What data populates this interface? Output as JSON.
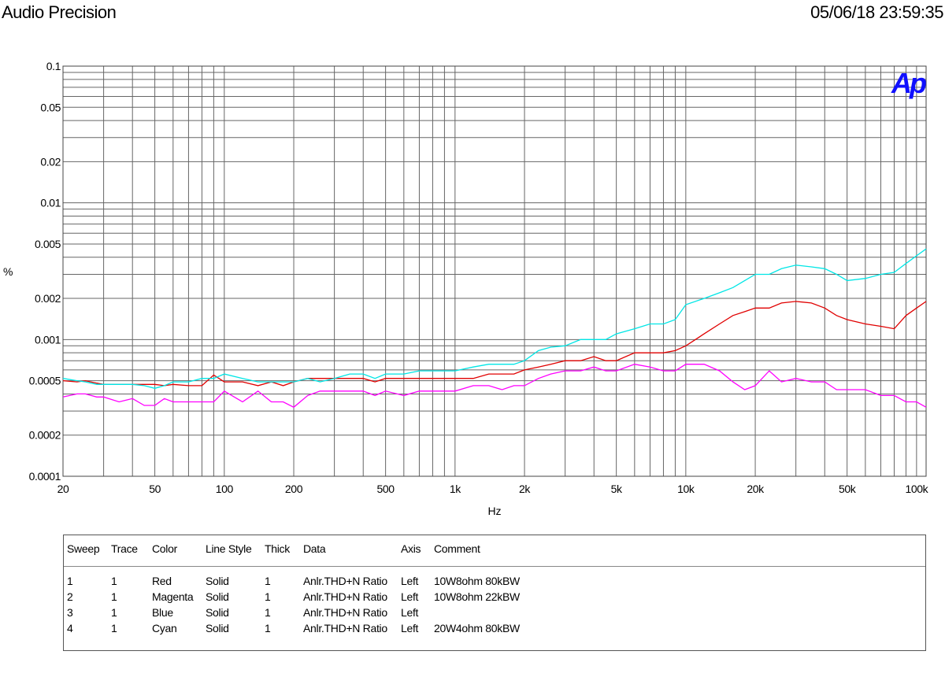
{
  "header": {
    "brand": "Audio Precision",
    "timestamp": "05/06/18 23:59:35"
  },
  "logo_text": "Ap",
  "colors": {
    "red": "#e00000",
    "magenta": "#ff00ff",
    "blue": "#0000ff",
    "cyan": "#00e6e6",
    "grid": "#666666",
    "logo": "#1010ff"
  },
  "chart_data": {
    "type": "line",
    "xlabel": "Hz",
    "ylabel": "%",
    "xscale": "log",
    "yscale": "log",
    "xlim": [
      20,
      110000
    ],
    "ylim": [
      0.0001,
      0.1
    ],
    "grid": true,
    "x_tick_labels": [
      {
        "value": 20,
        "label": "20"
      },
      {
        "value": 50,
        "label": "50"
      },
      {
        "value": 100,
        "label": "100"
      },
      {
        "value": 200,
        "label": "200"
      },
      {
        "value": 500,
        "label": "500"
      },
      {
        "value": 1000,
        "label": "1k"
      },
      {
        "value": 2000,
        "label": "2k"
      },
      {
        "value": 5000,
        "label": "5k"
      },
      {
        "value": 10000,
        "label": "10k"
      },
      {
        "value": 20000,
        "label": "20k"
      },
      {
        "value": 50000,
        "label": "50k"
      },
      {
        "value": 100000,
        "label": "100k"
      }
    ],
    "y_tick_labels": [
      {
        "value": 0.1,
        "label": "0.1"
      },
      {
        "value": 0.05,
        "label": "0.05"
      },
      {
        "value": 0.02,
        "label": "0.02"
      },
      {
        "value": 0.01,
        "label": "0.01"
      },
      {
        "value": 0.005,
        "label": "0.005"
      },
      {
        "value": 0.002,
        "label": "0.002"
      },
      {
        "value": 0.001,
        "label": "0.001"
      },
      {
        "value": 0.0005,
        "label": "0.0005"
      },
      {
        "value": 0.0002,
        "label": "0.0002"
      },
      {
        "value": 0.0001,
        "label": "0.0001"
      }
    ],
    "series": [
      {
        "color": "red",
        "x": [
          20,
          23,
          25,
          28,
          30,
          35,
          40,
          45,
          50,
          55,
          60,
          70,
          80,
          90,
          100,
          120,
          140,
          160,
          180,
          200,
          230,
          260,
          300,
          350,
          400,
          450,
          500,
          600,
          700,
          800,
          900,
          1000,
          1200,
          1400,
          1600,
          1800,
          2000,
          2300,
          2600,
          3000,
          3500,
          4000,
          4500,
          5000,
          6000,
          7000,
          8000,
          9000,
          10000,
          12000,
          14000,
          16000,
          18000,
          20000,
          23000,
          26000,
          30000,
          35000,
          40000,
          45000,
          50000,
          60000,
          70000,
          80000,
          90000,
          100000,
          110000
        ],
        "y": [
          0.0005,
          0.00049,
          0.0005,
          0.00048,
          0.00047,
          0.00047,
          0.00047,
          0.00047,
          0.00047,
          0.00046,
          0.00047,
          0.00046,
          0.00046,
          0.00055,
          0.00049,
          0.00049,
          0.00046,
          0.00049,
          0.00046,
          0.00049,
          0.00052,
          0.00052,
          0.00052,
          0.00052,
          0.00052,
          0.00049,
          0.00052,
          0.00052,
          0.00052,
          0.00052,
          0.00052,
          0.00052,
          0.00052,
          0.00056,
          0.00056,
          0.00056,
          0.0006,
          0.00063,
          0.00066,
          0.0007,
          0.0007,
          0.00075,
          0.0007,
          0.0007,
          0.0008,
          0.0008,
          0.0008,
          0.00083,
          0.0009,
          0.0011,
          0.0013,
          0.0015,
          0.0016,
          0.0017,
          0.0017,
          0.00185,
          0.0019,
          0.00185,
          0.0017,
          0.0015,
          0.0014,
          0.0013,
          0.00125,
          0.0012,
          0.0015,
          0.0017,
          0.0019
        ]
      },
      {
        "color": "magenta",
        "x": [
          20,
          23,
          25,
          28,
          30,
          35,
          40,
          45,
          50,
          55,
          60,
          70,
          80,
          90,
          100,
          120,
          140,
          160,
          180,
          200,
          230,
          260,
          300,
          350,
          400,
          450,
          500,
          600,
          700,
          800,
          900,
          1000,
          1200,
          1400,
          1600,
          1800,
          2000,
          2300,
          2600,
          3000,
          3500,
          4000,
          4500,
          5000,
          6000,
          7000,
          8000,
          9000,
          10000,
          12000,
          14000,
          16000,
          18000,
          20000,
          23000,
          26000,
          30000,
          35000,
          40000,
          45000,
          50000,
          60000,
          70000,
          80000,
          90000,
          100000,
          110000
        ],
        "y": [
          0.00038,
          0.0004,
          0.0004,
          0.00038,
          0.00038,
          0.00035,
          0.00037,
          0.00033,
          0.00033,
          0.00037,
          0.00035,
          0.00035,
          0.00035,
          0.00035,
          0.00042,
          0.00035,
          0.00042,
          0.00035,
          0.00035,
          0.00032,
          0.00039,
          0.00042,
          0.00042,
          0.00042,
          0.00042,
          0.00039,
          0.00042,
          0.00039,
          0.00042,
          0.00042,
          0.00042,
          0.00042,
          0.00046,
          0.00046,
          0.00043,
          0.00046,
          0.00046,
          0.00052,
          0.00056,
          0.00059,
          0.00059,
          0.00063,
          0.00059,
          0.00059,
          0.00066,
          0.00063,
          0.00059,
          0.00059,
          0.00066,
          0.00066,
          0.00059,
          0.00049,
          0.00043,
          0.00046,
          0.00059,
          0.00049,
          0.00052,
          0.00049,
          0.00049,
          0.00043,
          0.00043,
          0.00043,
          0.00039,
          0.00039,
          0.00035,
          0.00035,
          0.00032
        ]
      },
      {
        "color": "cyan",
        "x": [
          20,
          23,
          25,
          28,
          30,
          35,
          40,
          45,
          50,
          55,
          60,
          70,
          80,
          90,
          100,
          120,
          140,
          160,
          180,
          200,
          230,
          260,
          300,
          350,
          400,
          450,
          500,
          600,
          700,
          800,
          900,
          1000,
          1200,
          1400,
          1600,
          1800,
          2000,
          2300,
          2600,
          3000,
          3500,
          4000,
          4500,
          5000,
          6000,
          7000,
          8000,
          9000,
          10000,
          12000,
          14000,
          16000,
          18000,
          20000,
          23000,
          26000,
          30000,
          35000,
          40000,
          45000,
          50000,
          60000,
          70000,
          80000,
          90000,
          100000,
          110000
        ],
        "y": [
          0.00052,
          0.0005,
          0.00049,
          0.00047,
          0.00047,
          0.00047,
          0.00047,
          0.00046,
          0.00044,
          0.00046,
          0.00049,
          0.00049,
          0.00052,
          0.00052,
          0.00056,
          0.00052,
          0.00049,
          0.00049,
          0.00049,
          0.00049,
          0.00052,
          0.00049,
          0.00052,
          0.00056,
          0.00056,
          0.00052,
          0.00056,
          0.00056,
          0.00059,
          0.00059,
          0.00059,
          0.00059,
          0.00063,
          0.00066,
          0.00066,
          0.00066,
          0.0007,
          0.00083,
          0.00088,
          0.0009,
          0.001,
          0.001,
          0.001,
          0.0011,
          0.0012,
          0.0013,
          0.0013,
          0.0014,
          0.0018,
          0.002,
          0.0022,
          0.0024,
          0.0027,
          0.003,
          0.003,
          0.0033,
          0.0035,
          0.0034,
          0.0033,
          0.003,
          0.0027,
          0.0028,
          0.003,
          0.0031,
          0.0036,
          0.0041,
          0.0046
        ]
      }
    ]
  },
  "legend": {
    "headers": [
      "Sweep",
      "Trace",
      "Color",
      "Line Style",
      "Thick",
      "Data",
      "Axis",
      "Comment"
    ],
    "rows": [
      [
        "1",
        "1",
        "Red",
        "Solid",
        "1",
        "Anlr.THD+N Ratio",
        "Left",
        "10W8ohm 80kBW"
      ],
      [
        "2",
        "1",
        "Magenta",
        "Solid",
        "1",
        "Anlr.THD+N Ratio",
        "Left",
        "10W8ohm 22kBW"
      ],
      [
        "3",
        "1",
        "Blue",
        "Solid",
        "1",
        "Anlr.THD+N Ratio",
        "Left",
        ""
      ],
      [
        "4",
        "1",
        "Cyan",
        "Solid",
        "1",
        "Anlr.THD+N Ratio",
        "Left",
        "20W4ohm 80kBW"
      ]
    ]
  }
}
